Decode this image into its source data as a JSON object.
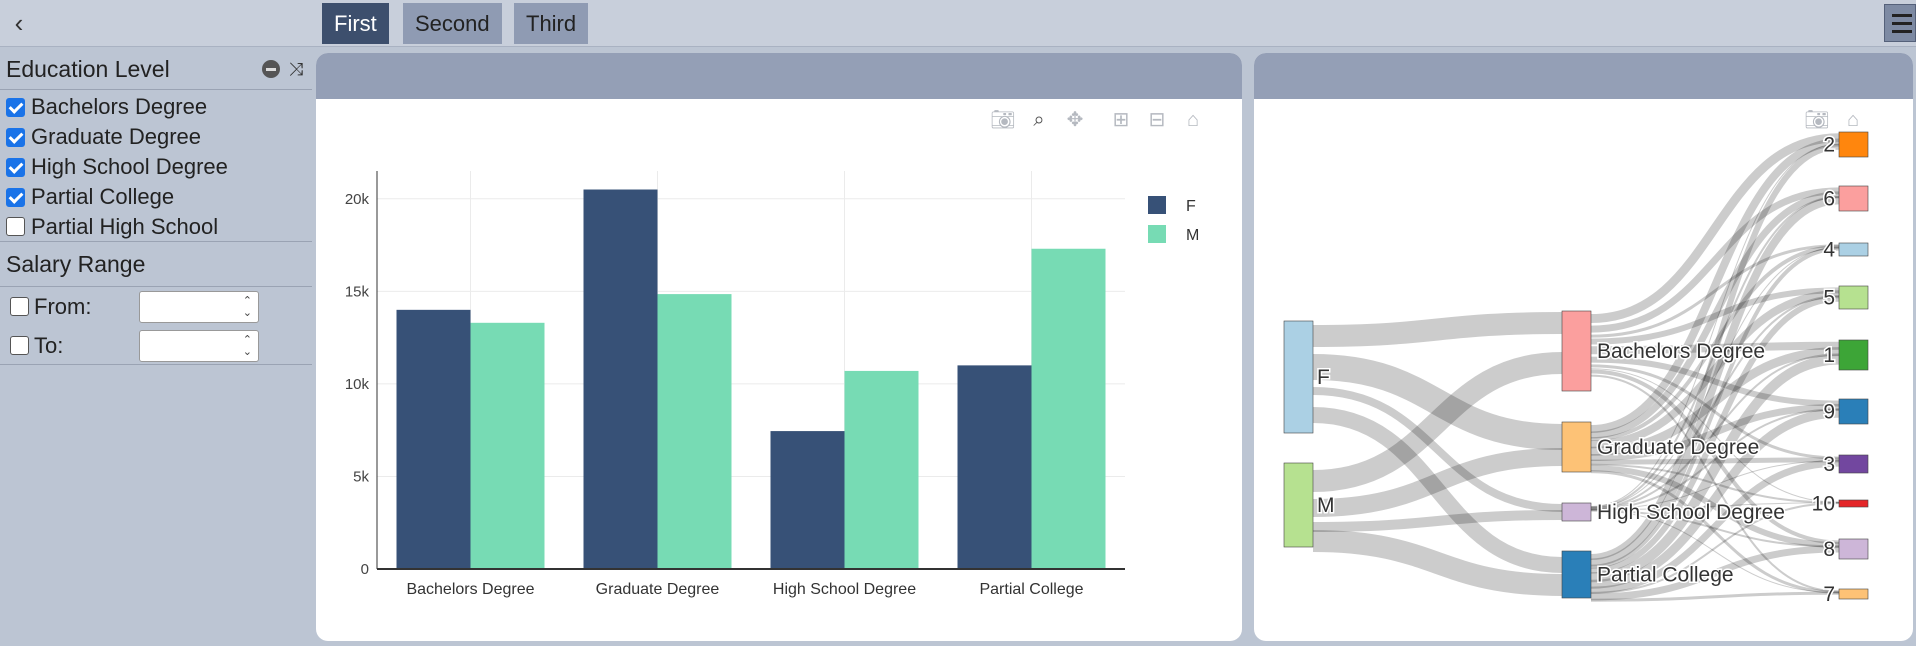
{
  "topbar": {
    "back_icon": "chevron-left-icon",
    "tabs": [
      {
        "label": "First",
        "active": true
      },
      {
        "label": "Second",
        "active": false
      },
      {
        "label": "Third",
        "active": false
      }
    ],
    "menu_icon": "hamburger-menu-icon"
  },
  "sidebar": {
    "education": {
      "title": "Education Level",
      "items": [
        {
          "label": "Bachelors Degree",
          "checked": true
        },
        {
          "label": "Graduate Degree",
          "checked": true
        },
        {
          "label": "High School Degree",
          "checked": true
        },
        {
          "label": "Partial College",
          "checked": true
        },
        {
          "label": "Partial High School",
          "checked": false
        }
      ]
    },
    "salary": {
      "title": "Salary Range",
      "from_label": "From:",
      "to_label": "To:",
      "from_value": "",
      "to_value": ""
    }
  },
  "colors": {
    "F": "#375177",
    "M": "#77dbb4",
    "panel_header": "#949fb6",
    "sidebar_bg": "#bcc5d3"
  },
  "chart_data": [
    {
      "type": "bar",
      "categories": [
        "Bachelors Degree",
        "Graduate Degree",
        "High School Degree",
        "Partial College"
      ],
      "series": [
        {
          "name": "F",
          "values": [
            14000,
            20500,
            7450,
            11000
          ]
        },
        {
          "name": "M",
          "values": [
            13300,
            14850,
            10700,
            17300
          ]
        }
      ],
      "y_ticks": [
        "0",
        "5k",
        "10k",
        "15k",
        "20k"
      ],
      "ylim": [
        0,
        21500
      ],
      "legend_position": "top-right",
      "grid": true
    },
    {
      "type": "sankey",
      "nodes": {
        "gender": [
          "F",
          "M"
        ],
        "education": [
          "Bachelors Degree",
          "Graduate Degree",
          "High School Degree",
          "Partial College"
        ],
        "targets": [
          "2",
          "6",
          "4",
          "5",
          "1",
          "9",
          "3",
          "10",
          "8",
          "7"
        ]
      },
      "node_colors": {
        "F": "#a6cee3",
        "M": "#b2df8a",
        "Bachelors Degree": "#fb9a99",
        "Graduate Degree": "#fdbf6f",
        "High School Degree": "#cab2d6",
        "Partial College": "#1f78b4",
        "2": "#ff7f00",
        "6": "#fb9a99",
        "4": "#a6cee3",
        "5": "#b2df8a",
        "1": "#33a02c",
        "9": "#1f78b4",
        "3": "#6a3d9a",
        "10": "#e31a1c",
        "8": "#cab2d6",
        "7": "#fdbf6f"
      }
    }
  ]
}
